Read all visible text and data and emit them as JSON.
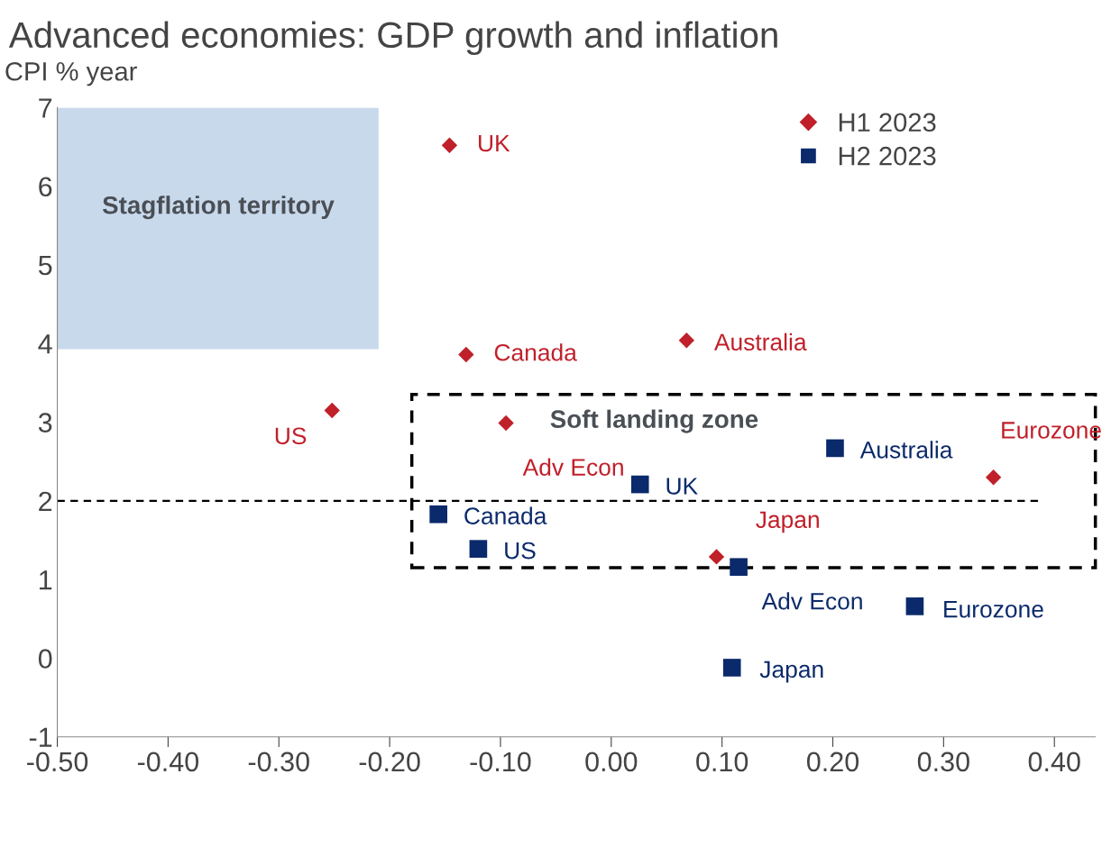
{
  "chart_data": {
    "type": "scatter",
    "title": "Advanced economies: GDP growth and inflation",
    "ylabel": "CPI % year",
    "series": [
      {
        "name": "H1 2023",
        "color": "#c0202a",
        "marker": "diamond",
        "x": [
          -0.146,
          -0.131,
          0.068,
          -0.252,
          -0.095,
          0.345,
          0.095
        ],
        "values": [
          6.52,
          3.86,
          4.04,
          3.15,
          2.99,
          2.3,
          1.29
        ]
      },
      {
        "name": "H2 2023",
        "color": "#0b2a6b",
        "marker": "square",
        "x": [
          0.202,
          0.026,
          -0.156,
          -0.12,
          0.115,
          0.274,
          0.109
        ],
        "values": [
          2.67,
          2.21,
          1.83,
          1.39,
          1.16,
          0.66,
          -0.12
        ]
      }
    ],
    "annotations": [
      {
        "text": "UK",
        "x": -0.146,
        "y": 6.52
      },
      {
        "text": "Canada",
        "x": -0.131,
        "y": 3.86
      },
      {
        "text": "Australia",
        "x": 0.068,
        "y": 4.04
      },
      {
        "text": "US",
        "x": -0.252,
        "y": 3.15
      },
      {
        "text": "Adv Econ",
        "x": -0.095,
        "y": 2.99
      },
      {
        "text": "Eurozone",
        "x": 0.345,
        "y": 2.3
      },
      {
        "text": "Japan",
        "x": 0.095,
        "y": 1.29
      },
      {
        "text": "Australia",
        "x": 0.202,
        "y": 2.67
      },
      {
        "text": "UK",
        "x": 0.026,
        "y": 2.21
      },
      {
        "text": "Canada",
        "x": -0.156,
        "y": 1.83
      },
      {
        "text": "US",
        "x": -0.12,
        "y": 1.39
      },
      {
        "text": "Adv Econ",
        "x": 0.115,
        "y": 1.16
      },
      {
        "text": "Eurozone",
        "x": 0.274,
        "y": 0.66
      },
      {
        "text": "Japan",
        "x": 0.109,
        "y": -0.12
      },
      "Stagflation territory",
      "Soft landing zone"
    ],
    "ref_lines": [
      {
        "axis": "y",
        "value": 2,
        "label": null,
        "color": "#000000",
        "line_style": "dashed"
      }
    ],
    "xlim": [
      -0.5,
      0.437
    ],
    "ylim": [
      -1,
      7
    ],
    "xticks": [
      {
        "value": -0.5,
        "label": "-0.50"
      },
      {
        "value": -0.4,
        "label": "-0.40"
      },
      {
        "value": -0.3,
        "label": "-0.30"
      },
      {
        "value": -0.2,
        "label": "-0.20"
      },
      {
        "value": -0.1,
        "label": "-0.10"
      },
      {
        "value": 0,
        "label": "0.00"
      },
      {
        "value": 0.1,
        "label": "0.10"
      },
      {
        "value": 0.2,
        "label": "0.20"
      },
      {
        "value": 0.3,
        "label": "0.30"
      },
      {
        "value": 0.4,
        "label": "0.40"
      }
    ],
    "yticks": [
      {
        "value": -1,
        "label": "-1"
      },
      0,
      1,
      2,
      3,
      4,
      5,
      6,
      7
    ],
    "grid": false,
    "legend": "top right"
  }
}
